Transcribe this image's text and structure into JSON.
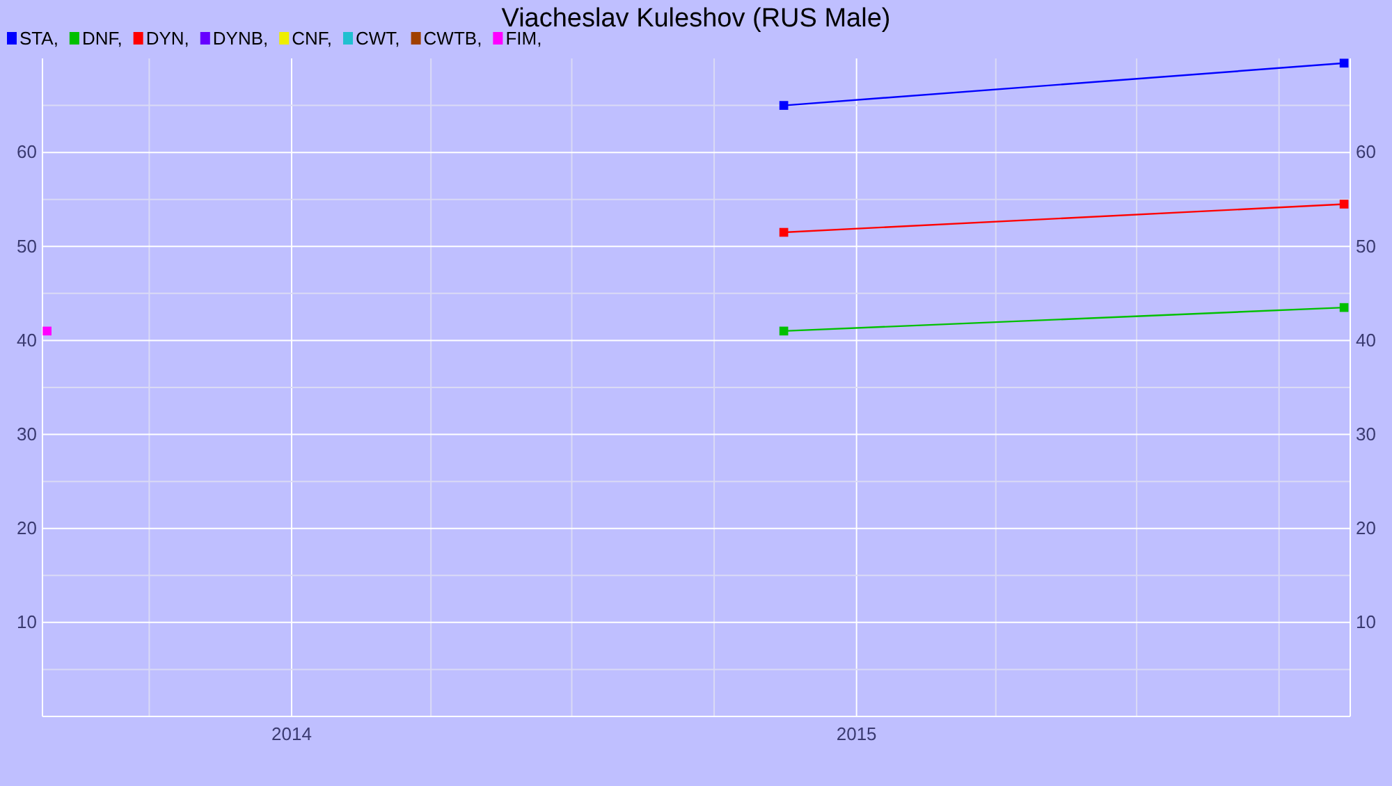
{
  "chart_data": {
    "type": "line",
    "title": "Viacheslav Kuleshov (RUS Male)",
    "legend": "top left",
    "grid": true,
    "marker": "square",
    "line_style": "solid",
    "xlim": [
      "2013-07-24",
      "2015-11-16"
    ],
    "xticks": [
      {
        "value": "2013-10-01",
        "label": null
      },
      {
        "value": "2014-01-01",
        "label": "2014"
      },
      {
        "value": "2014-04-01",
        "label": null
      },
      {
        "value": "2014-07-01",
        "label": null
      },
      {
        "value": "2014-10-01",
        "label": null
      },
      {
        "value": "2015-01-01",
        "label": "2015"
      },
      {
        "value": "2015-04-01",
        "label": null
      },
      {
        "value": "2015-07-01",
        "label": null
      },
      {
        "value": "2015-10-01",
        "label": null
      }
    ],
    "ylim": [
      0,
      70
    ],
    "yticks": [
      {
        "value": 5,
        "label": null
      },
      10,
      {
        "value": 15,
        "label": null
      },
      20,
      {
        "value": 25,
        "label": null
      },
      30,
      {
        "value": 35,
        "label": null
      },
      40,
      {
        "value": 45,
        "label": null
      },
      50,
      {
        "value": 55,
        "label": null
      },
      60,
      {
        "value": 65,
        "label": null
      }
    ],
    "y2lim": [
      0,
      70
    ],
    "y2ticks": [
      10,
      20,
      30,
      40,
      50,
      60
    ],
    "series": [
      {
        "name": "STA,",
        "color": "#0000ff",
        "x": [
          "2014-11-15",
          "2015-11-12"
        ],
        "values": [
          65,
          69.5
        ]
      },
      {
        "name": "DNF,",
        "color": "#00c000",
        "x": [
          "2014-11-15",
          "2015-11-12"
        ],
        "values": [
          41,
          43.5
        ]
      },
      {
        "name": "DYN,",
        "color": "#ff0000",
        "x": [
          "2014-11-15",
          "2015-11-12"
        ],
        "values": [
          51.5,
          54.5
        ]
      },
      {
        "name": "DYNB,",
        "color": "#6600ff"
      },
      {
        "name": "CNF,",
        "color": "#eeee00"
      },
      {
        "name": "CWT,",
        "color": "#20c0d0"
      },
      {
        "name": "CWTB,",
        "color": "#a04000"
      },
      {
        "name": "FIM,",
        "color": "#ff00ff",
        "x": [
          "2013-07-27"
        ],
        "values": [
          41
        ]
      }
    ]
  }
}
